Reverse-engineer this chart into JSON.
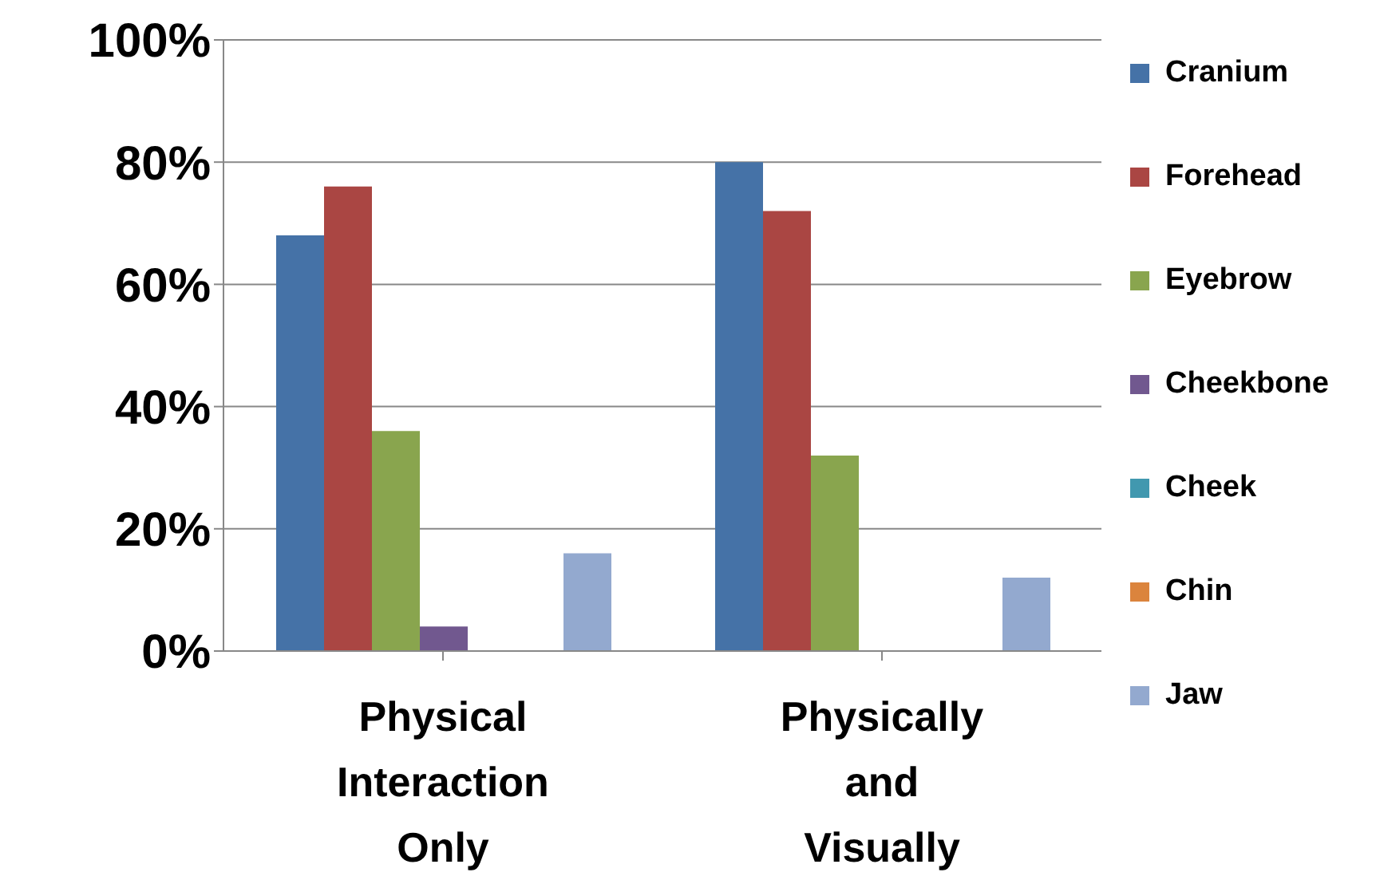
{
  "chart_data": {
    "type": "bar",
    "categories": [
      "Physical Interaction Only",
      "Physically and Visually"
    ],
    "series": [
      {
        "name": "Cranium",
        "color": "#4572a7",
        "values": [
          68,
          80
        ]
      },
      {
        "name": "Forehead",
        "color": "#aa4643",
        "values": [
          76,
          72
        ]
      },
      {
        "name": "Eyebrow",
        "color": "#89a54e",
        "values": [
          36,
          32
        ]
      },
      {
        "name": "Cheekbone",
        "color": "#71588f",
        "values": [
          4,
          0
        ]
      },
      {
        "name": "Cheek",
        "color": "#4198af",
        "values": [
          0,
          0
        ]
      },
      {
        "name": "Chin",
        "color": "#db843d",
        "values": [
          0,
          0
        ]
      },
      {
        "name": "Jaw",
        "color": "#93a9cf",
        "values": [
          16,
          12
        ]
      }
    ],
    "ylim": [
      0,
      100
    ],
    "yticks": [
      {
        "value": 0,
        "label": "0%"
      },
      {
        "value": 20,
        "label": "20%"
      },
      {
        "value": 40,
        "label": "40%"
      },
      {
        "value": 60,
        "label": "60%"
      },
      {
        "value": 80,
        "label": "80%"
      },
      {
        "value": 100,
        "label": "100%"
      }
    ],
    "grid": "y",
    "legend": "right"
  }
}
